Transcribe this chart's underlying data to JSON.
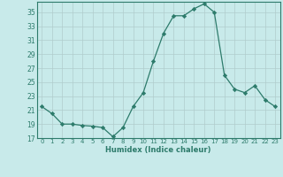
{
  "x": [
    0,
    1,
    2,
    3,
    4,
    5,
    6,
    7,
    8,
    9,
    10,
    11,
    12,
    13,
    14,
    15,
    16,
    17,
    18,
    19,
    20,
    21,
    22,
    23
  ],
  "y": [
    21.5,
    20.5,
    19.0,
    19.0,
    18.8,
    18.7,
    18.5,
    17.2,
    18.5,
    21.5,
    23.5,
    28.0,
    32.0,
    34.5,
    34.5,
    35.5,
    36.2,
    35.0,
    26.0,
    24.0,
    23.5,
    24.5,
    22.5,
    21.5
  ],
  "line_color": "#2d7b6b",
  "marker": "D",
  "marker_size": 2.2,
  "bg_color": "#c8eaea",
  "grid_color": "#b0cccc",
  "xlabel": "Humidex (Indice chaleur)",
  "ylim": [
    17,
    36.5
  ],
  "yticks": [
    17,
    19,
    21,
    23,
    25,
    27,
    29,
    31,
    33,
    35
  ],
  "xticks": [
    0,
    1,
    2,
    3,
    4,
    5,
    6,
    7,
    8,
    9,
    10,
    11,
    12,
    13,
    14,
    15,
    16,
    17,
    18,
    19,
    20,
    21,
    22,
    23
  ]
}
